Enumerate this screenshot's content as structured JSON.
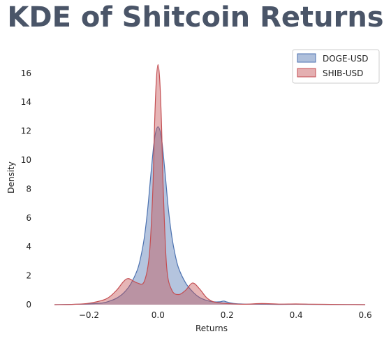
{
  "chart_data": {
    "type": "area",
    "title": "KDE of Shitcoin Returns",
    "xlabel": "Returns",
    "ylabel": "Density",
    "xlim": [
      -0.3,
      0.61
    ],
    "ylim": [
      0,
      17.2
    ],
    "xticks": [
      -0.2,
      0.0,
      0.2,
      0.4,
      0.6
    ],
    "xtick_labels": [
      "−0.2",
      "0.0",
      "0.2",
      "0.4",
      "0.6"
    ],
    "yticks": [
      0,
      2,
      4,
      6,
      8,
      10,
      12,
      14,
      16
    ],
    "ytick_labels": [
      "0",
      "2",
      "4",
      "6",
      "8",
      "10",
      "12",
      "14",
      "16"
    ],
    "grid": false,
    "legend_position": "top-right",
    "series": [
      {
        "name": "DOGE-USD",
        "color": "#4c72b0",
        "x": [
          -0.3,
          -0.25,
          -0.2,
          -0.16,
          -0.14,
          -0.12,
          -0.1,
          -0.08,
          -0.06,
          -0.05,
          -0.04,
          -0.03,
          -0.02,
          -0.01,
          0.0,
          0.01,
          0.02,
          0.03,
          0.04,
          0.05,
          0.06,
          0.08,
          0.1,
          0.12,
          0.14,
          0.16,
          0.18,
          0.19,
          0.2,
          0.22,
          0.25,
          0.3,
          0.35,
          0.4,
          0.45,
          0.5,
          0.55,
          0.6
        ],
        "y": [
          0.0,
          0.02,
          0.05,
          0.12,
          0.25,
          0.45,
          0.8,
          1.4,
          2.4,
          3.3,
          4.6,
          6.6,
          9.2,
          11.5,
          12.3,
          11.5,
          9.2,
          6.6,
          4.7,
          3.4,
          2.5,
          1.5,
          0.9,
          0.5,
          0.3,
          0.2,
          0.2,
          0.25,
          0.18,
          0.08,
          0.04,
          0.03,
          0.02,
          0.03,
          0.02,
          0.01,
          0.01,
          0.0
        ]
      },
      {
        "name": "SHIB-USD",
        "color": "#c44e52",
        "x": [
          -0.3,
          -0.25,
          -0.2,
          -0.15,
          -0.12,
          -0.1,
          -0.085,
          -0.06,
          -0.04,
          -0.025,
          -0.015,
          -0.01,
          -0.005,
          0.0,
          0.005,
          0.01,
          0.015,
          0.025,
          0.04,
          0.06,
          0.08,
          0.1,
          0.12,
          0.14,
          0.16,
          0.18,
          0.2,
          0.25,
          0.3,
          0.35,
          0.4,
          0.45,
          0.5,
          0.55,
          0.6
        ],
        "y": [
          0.0,
          0.02,
          0.1,
          0.4,
          1.0,
          1.6,
          1.8,
          1.5,
          1.6,
          3.5,
          8.0,
          12.5,
          15.5,
          16.6,
          15.5,
          12.5,
          8.0,
          2.6,
          1.0,
          0.7,
          1.0,
          1.5,
          1.1,
          0.5,
          0.2,
          0.12,
          0.08,
          0.03,
          0.08,
          0.04,
          0.05,
          0.03,
          0.02,
          0.01,
          0.0
        ]
      }
    ]
  }
}
